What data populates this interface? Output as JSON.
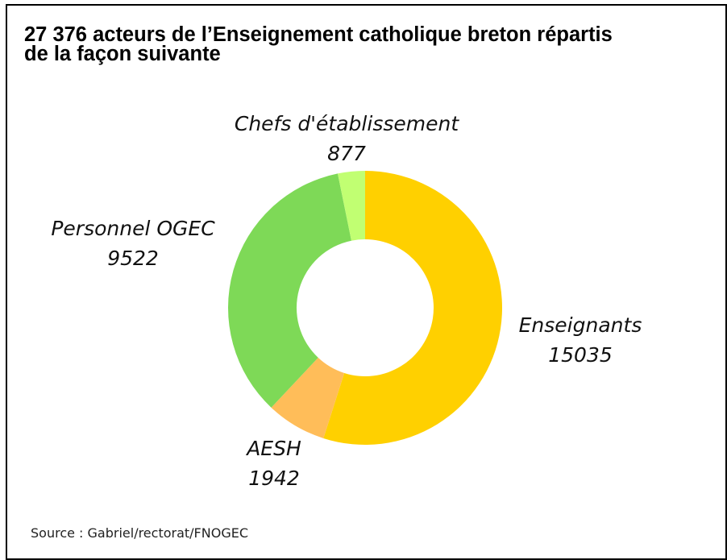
{
  "chart_data": {
    "type": "donut",
    "title": "27 376 acteurs de l’Enseignement catholique breton répartis de la façon suivante",
    "categories": [
      "Enseignants",
      "AESH",
      "Personnel OGEC",
      "Chefs d'établissement"
    ],
    "values": [
      15035,
      1942,
      9522,
      877
    ],
    "colors": [
      "#ffd000",
      "#ffbd59",
      "#7ed957",
      "#c1ff72"
    ],
    "source": "Source  : Gabriel/rectorat/FNOGEC"
  }
}
